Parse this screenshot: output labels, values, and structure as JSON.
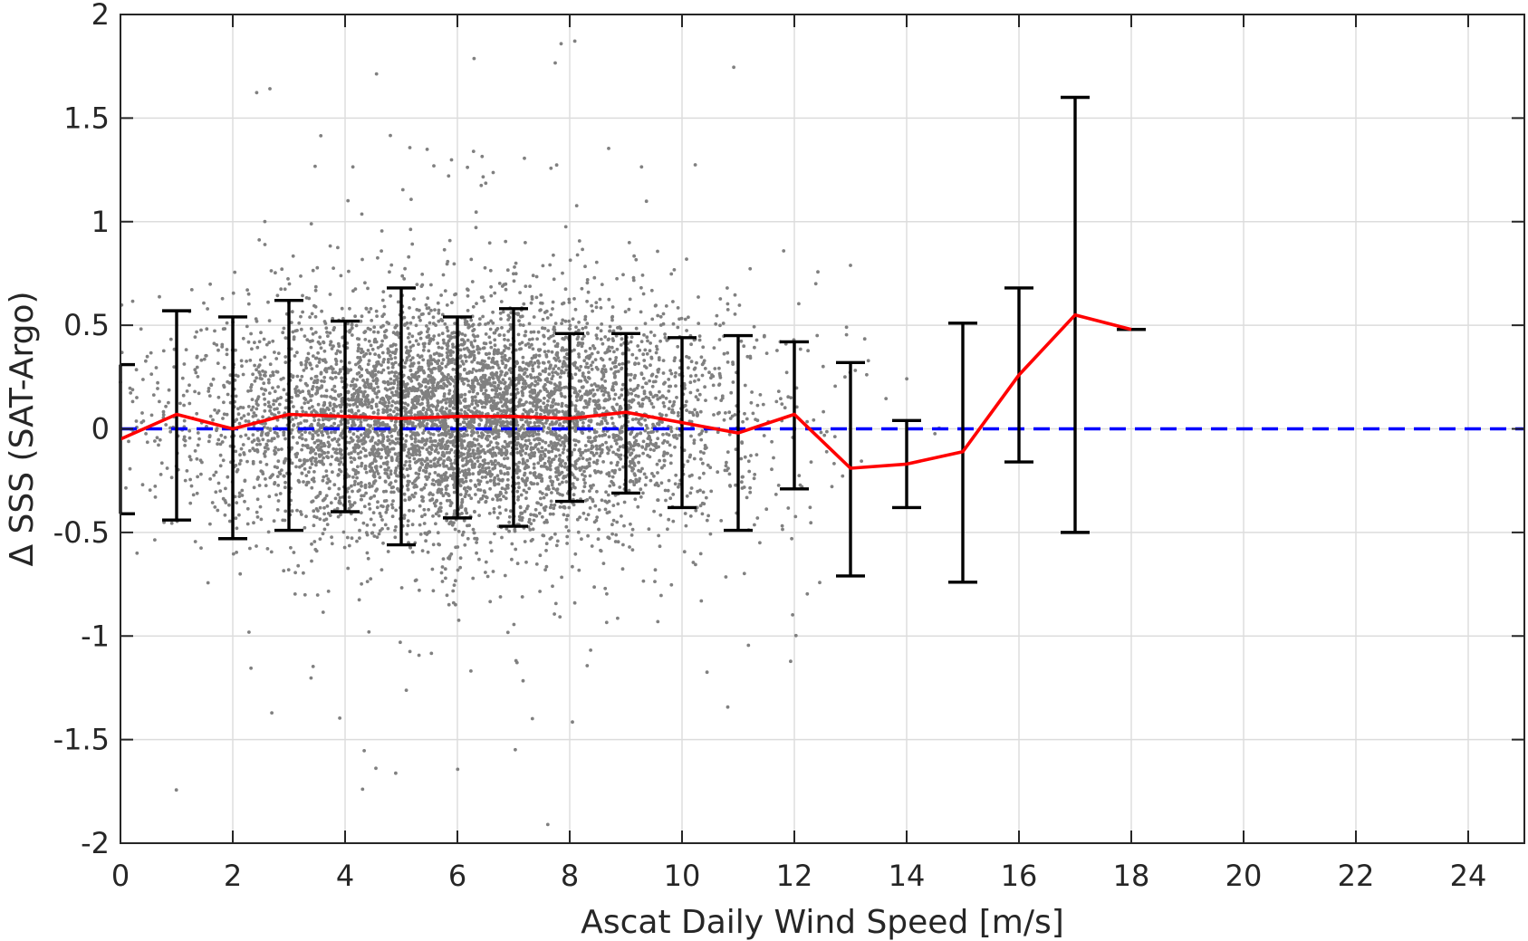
{
  "chart_data": {
    "type": "scatter",
    "title": "",
    "xlabel": "Ascat Daily Wind Speed [m/s]",
    "ylabel": "Δ SSS (SAT-Argo)",
    "xlim": [
      0,
      25
    ],
    "ylim": [
      -2,
      2
    ],
    "xticks": [
      0,
      2,
      4,
      6,
      8,
      10,
      12,
      14,
      16,
      18,
      20,
      22,
      24
    ],
    "yticks": [
      -2,
      -1.5,
      -1,
      -0.5,
      0,
      0.5,
      1,
      1.5,
      2
    ],
    "x_tick_labels": [
      "0",
      "2",
      "4",
      "6",
      "8",
      "10",
      "12",
      "14",
      "16",
      "18",
      "20",
      "22",
      "24"
    ],
    "y_tick_labels": [
      "-2",
      "-1.5",
      "-1",
      "-0.5",
      "0",
      "0.5",
      "1",
      "1.5",
      "2"
    ],
    "grid": true,
    "colors": {
      "scatter": "#808080",
      "mean_line": "#ff0000",
      "error_bars": "#000000",
      "zero_line": "#0000ff"
    },
    "series": [
      {
        "type": "scatter",
        "description_count": 6000,
        "x_range": [
          0,
          16.5
        ],
        "y_spread": "approximately -2 to 2, concentrated between -0.6 and 0.7 for wind speeds 1–11 m/s"
      },
      {
        "type": "line",
        "x": [
          0,
          1,
          2,
          3,
          4,
          5,
          6,
          7,
          8,
          9,
          10,
          11,
          12,
          13,
          14,
          15,
          16,
          17,
          18
        ],
        "y": [
          -0.05,
          0.07,
          0.0,
          0.07,
          0.06,
          0.05,
          0.06,
          0.06,
          0.05,
          0.08,
          0.03,
          -0.02,
          0.07,
          -0.19,
          -0.17,
          -0.11,
          0.26,
          0.55,
          0.48
        ]
      },
      {
        "type": "errorbar",
        "x": [
          0,
          1,
          2,
          3,
          4,
          5,
          6,
          7,
          8,
          9,
          10,
          11,
          12,
          13,
          14,
          15,
          16,
          17,
          18
        ],
        "upper": [
          0.31,
          0.57,
          0.54,
          0.62,
          0.52,
          0.68,
          0.54,
          0.58,
          0.46,
          0.46,
          0.44,
          0.45,
          0.42,
          0.32,
          0.04,
          0.51,
          0.68,
          1.6,
          0.48
        ],
        "lower": [
          -0.41,
          -0.44,
          -0.53,
          -0.49,
          -0.4,
          -0.56,
          -0.43,
          -0.47,
          -0.35,
          -0.31,
          -0.38,
          -0.49,
          -0.29,
          -0.71,
          -0.38,
          -0.74,
          -0.16,
          -0.5,
          0.48
        ]
      },
      {
        "type": "reference_line",
        "y": 0,
        "style": "dashed"
      }
    ]
  }
}
